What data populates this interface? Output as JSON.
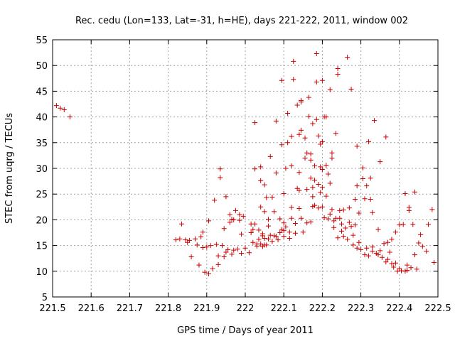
{
  "chart_data": {
    "type": "scatter",
    "title": "Rec. cedu (Lon=133, Lat=-31, h=HE), days 221-222, 2011, window 002",
    "xlabel": "GPS time / Days of year 2011",
    "ylabel": "STEC from uqrg / TECUs",
    "xlim": [
      221.5,
      222.5
    ],
    "ylim": [
      5,
      55
    ],
    "xticks": [
      "221.5",
      "221.6",
      "221.7",
      "221.8",
      "221.9",
      "222",
      "222.1",
      "222.2",
      "222.3",
      "222.4",
      "222.5"
    ],
    "yticks": [
      "5",
      "10",
      "15",
      "20",
      "25",
      "30",
      "35",
      "40",
      "45",
      "50",
      "55"
    ],
    "grid": true,
    "marker": "+",
    "color": "#cc0000",
    "points": [
      [
        221.51,
        42.2
      ],
      [
        221.52,
        41.7
      ],
      [
        221.53,
        41.4
      ],
      [
        221.545,
        40.0
      ],
      [
        221.82,
        16.1
      ],
      [
        221.83,
        16.3
      ],
      [
        221.835,
        19.2
      ],
      [
        221.845,
        16.1
      ],
      [
        221.85,
        15.6
      ],
      [
        221.855,
        16.0
      ],
      [
        221.86,
        12.8
      ],
      [
        221.87,
        16.3
      ],
      [
        221.875,
        15.1
      ],
      [
        221.88,
        11.2
      ],
      [
        221.885,
        16.7
      ],
      [
        221.89,
        14.6
      ],
      [
        221.89,
        17.6
      ],
      [
        221.895,
        9.8
      ],
      [
        221.9,
        14.7
      ],
      [
        221.905,
        9.5
      ],
      [
        221.905,
        19.8
      ],
      [
        221.91,
        15.0
      ],
      [
        221.915,
        10.5
      ],
      [
        221.92,
        23.8
      ],
      [
        221.925,
        15.2
      ],
      [
        221.93,
        13.0
      ],
      [
        221.93,
        11.3
      ],
      [
        221.935,
        28.2
      ],
      [
        221.935,
        29.9
      ],
      [
        221.94,
        15.0
      ],
      [
        221.945,
        12.8
      ],
      [
        221.945,
        18.3
      ],
      [
        221.95,
        13.7
      ],
      [
        221.95,
        24.5
      ],
      [
        221.955,
        14.2
      ],
      [
        221.96,
        19.5
      ],
      [
        221.96,
        21.0
      ],
      [
        221.965,
        13.3
      ],
      [
        221.965,
        20.1
      ],
      [
        221.97,
        14.1
      ],
      [
        221.97,
        20.0
      ],
      [
        221.975,
        21.8
      ],
      [
        221.98,
        14.3
      ],
      [
        221.985,
        19.9
      ],
      [
        221.985,
        21.0
      ],
      [
        221.99,
        13.5
      ],
      [
        221.99,
        17.2
      ],
      [
        221.995,
        20.7
      ],
      [
        222.0,
        14.5
      ],
      [
        222.01,
        13.6
      ],
      [
        222.015,
        17.5
      ],
      [
        222.015,
        19.2
      ],
      [
        222.02,
        15.6
      ],
      [
        222.02,
        18.1
      ],
      [
        222.025,
        19.2
      ],
      [
        222.025,
        29.9
      ],
      [
        222.025,
        38.9
      ],
      [
        222.03,
        14.9
      ],
      [
        222.03,
        15.3
      ],
      [
        222.035,
        16.2
      ],
      [
        222.035,
        18.0
      ],
      [
        222.04,
        15.3
      ],
      [
        222.04,
        30.3
      ],
      [
        222.04,
        22.5
      ],
      [
        222.04,
        27.6
      ],
      [
        222.045,
        14.8
      ],
      [
        222.045,
        16.9
      ],
      [
        222.045,
        17.3
      ],
      [
        222.05,
        15.1
      ],
      [
        222.05,
        16.4
      ],
      [
        222.05,
        26.8
      ],
      [
        222.05,
        21.6
      ],
      [
        222.055,
        15.1
      ],
      [
        222.055,
        24.3
      ],
      [
        222.06,
        16.3
      ],
      [
        222.06,
        20.1
      ],
      [
        222.06,
        18.8
      ],
      [
        222.065,
        32.3
      ],
      [
        222.065,
        17.0
      ],
      [
        222.07,
        15.8
      ],
      [
        222.07,
        24.4
      ],
      [
        222.075,
        21.6
      ],
      [
        222.075,
        16.9
      ],
      [
        222.08,
        16.8
      ],
      [
        222.08,
        29.1
      ],
      [
        222.08,
        39.2
      ],
      [
        222.085,
        16.1
      ],
      [
        222.09,
        20.2
      ],
      [
        222.09,
        17.5
      ],
      [
        222.095,
        18.1
      ],
      [
        222.095,
        34.6
      ],
      [
        222.095,
        47.1
      ],
      [
        222.1,
        16.8
      ],
      [
        222.1,
        17.9
      ],
      [
        222.1,
        19.4
      ],
      [
        222.1,
        25.1
      ],
      [
        222.105,
        18.6
      ],
      [
        222.105,
        30.0
      ],
      [
        222.11,
        40.7
      ],
      [
        222.11,
        35.0
      ],
      [
        222.115,
        16.4
      ],
      [
        222.115,
        17.6
      ],
      [
        222.12,
        30.5
      ],
      [
        222.12,
        36.2
      ],
      [
        222.12,
        20.3
      ],
      [
        222.12,
        22.4
      ],
      [
        222.125,
        50.8
      ],
      [
        222.125,
        47.3
      ],
      [
        222.13,
        17.4
      ],
      [
        222.13,
        19.3
      ],
      [
        222.135,
        26.1
      ],
      [
        222.135,
        42.3
      ],
      [
        222.14,
        36.6
      ],
      [
        222.14,
        29.2
      ],
      [
        222.14,
        25.7
      ],
      [
        222.14,
        22.2
      ],
      [
        222.145,
        20.3
      ],
      [
        222.145,
        37.4
      ],
      [
        222.145,
        42.9
      ],
      [
        222.145,
        43.2
      ],
      [
        222.15,
        17.6
      ],
      [
        222.155,
        35.9
      ],
      [
        222.155,
        32.0
      ],
      [
        222.16,
        19.4
      ],
      [
        222.16,
        25.9
      ],
      [
        222.16,
        33.0
      ],
      [
        222.165,
        40.1
      ],
      [
        222.165,
        43.8
      ],
      [
        222.17,
        19.6
      ],
      [
        222.17,
        28.1
      ],
      [
        222.17,
        31.6
      ],
      [
        222.17,
        32.8
      ],
      [
        222.175,
        22.6
      ],
      [
        222.175,
        24.5
      ],
      [
        222.175,
        26.3
      ],
      [
        222.175,
        38.7
      ],
      [
        222.18,
        22.8
      ],
      [
        222.18,
        27.7
      ],
      [
        222.18,
        30.5
      ],
      [
        222.185,
        39.5
      ],
      [
        222.185,
        46.8
      ],
      [
        222.185,
        52.3
      ],
      [
        222.19,
        22.3
      ],
      [
        222.19,
        26.9
      ],
      [
        222.19,
        36.3
      ],
      [
        222.195,
        25.3
      ],
      [
        222.195,
        30.3
      ],
      [
        222.195,
        34.7
      ],
      [
        222.2,
        22.5
      ],
      [
        222.2,
        26.3
      ],
      [
        222.2,
        29.8
      ],
      [
        222.2,
        35.2
      ],
      [
        222.2,
        47.1
      ],
      [
        222.205,
        20.4
      ],
      [
        222.205,
        40.0
      ],
      [
        222.21,
        24.6
      ],
      [
        222.21,
        30.6
      ],
      [
        222.21,
        40.0
      ],
      [
        222.215,
        20.2
      ],
      [
        222.215,
        28.9
      ],
      [
        222.22,
        21.1
      ],
      [
        222.22,
        27.1
      ],
      [
        222.22,
        45.3
      ],
      [
        222.225,
        22.0
      ],
      [
        222.225,
        32.0
      ],
      [
        222.225,
        33.0
      ],
      [
        222.23,
        18.5
      ],
      [
        222.23,
        19.8
      ],
      [
        222.235,
        20.3
      ],
      [
        222.235,
        36.8
      ],
      [
        222.24,
        16.5
      ],
      [
        222.24,
        48.3
      ],
      [
        222.24,
        49.4
      ],
      [
        222.245,
        20.3
      ],
      [
        222.245,
        21.8
      ],
      [
        222.25,
        17.8
      ],
      [
        222.25,
        19.2
      ],
      [
        222.255,
        16.8
      ],
      [
        222.255,
        21.9
      ],
      [
        222.26,
        18.4
      ],
      [
        222.265,
        16.2
      ],
      [
        222.265,
        51.6
      ],
      [
        222.27,
        19.5
      ],
      [
        222.27,
        22.3
      ],
      [
        222.275,
        45.4
      ],
      [
        222.275,
        18.7
      ],
      [
        222.28,
        15.1
      ],
      [
        222.28,
        17.0
      ],
      [
        222.285,
        19.0
      ],
      [
        222.285,
        24.0
      ],
      [
        222.29,
        14.5
      ],
      [
        222.29,
        26.6
      ],
      [
        222.29,
        34.3
      ],
      [
        222.295,
        15.6
      ],
      [
        222.295,
        21.3
      ],
      [
        222.3,
        14.2
      ],
      [
        222.305,
        30.1
      ],
      [
        222.305,
        28.0
      ],
      [
        222.31,
        13.2
      ],
      [
        222.31,
        24.1
      ],
      [
        222.315,
        14.5
      ],
      [
        222.315,
        26.6
      ],
      [
        222.32,
        13.0
      ],
      [
        222.32,
        35.2
      ],
      [
        222.325,
        24.0
      ],
      [
        222.325,
        28.1
      ],
      [
        222.33,
        13.9
      ],
      [
        222.33,
        14.7
      ],
      [
        222.33,
        21.4
      ],
      [
        222.335,
        39.3
      ],
      [
        222.34,
        13.5
      ],
      [
        222.345,
        13.2
      ],
      [
        222.345,
        18.1
      ],
      [
        222.35,
        14.0
      ],
      [
        222.35,
        31.3
      ],
      [
        222.355,
        12.7
      ],
      [
        222.36,
        15.4
      ],
      [
        222.365,
        11.8
      ],
      [
        222.365,
        36.1
      ],
      [
        222.37,
        12.3
      ],
      [
        222.37,
        15.6
      ],
      [
        222.375,
        13.7
      ],
      [
        222.38,
        16.2
      ],
      [
        222.38,
        11.5
      ],
      [
        222.385,
        10.8
      ],
      [
        222.39,
        11.6
      ],
      [
        222.39,
        17.6
      ],
      [
        222.395,
        10.0
      ],
      [
        222.4,
        10.5
      ],
      [
        222.4,
        19.0
      ],
      [
        222.405,
        10.1
      ],
      [
        222.41,
        19.1
      ],
      [
        222.415,
        10.0
      ],
      [
        222.415,
        25.1
      ],
      [
        222.42,
        10.2
      ],
      [
        222.42,
        11.2
      ],
      [
        222.425,
        21.8
      ],
      [
        222.425,
        22.4
      ],
      [
        222.43,
        10.7
      ],
      [
        222.435,
        19.1
      ],
      [
        222.44,
        25.4
      ],
      [
        222.44,
        13.2
      ],
      [
        222.445,
        10.4
      ],
      [
        222.45,
        15.5
      ],
      [
        222.455,
        17.1
      ],
      [
        222.46,
        14.8
      ],
      [
        222.47,
        13.9
      ],
      [
        222.475,
        19.1
      ],
      [
        222.485,
        22.0
      ],
      [
        222.49,
        11.7
      ]
    ]
  }
}
